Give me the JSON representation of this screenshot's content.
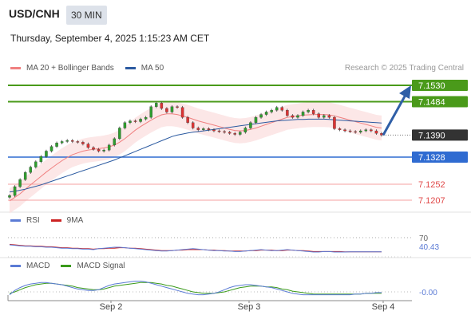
{
  "header": {
    "pair": "USD/CNH",
    "timeframe": "30 MIN",
    "datetime": "Thursday, September 4, 2025 1:15:23 AM CET",
    "credit": "Research © 2025 Trading Central"
  },
  "legend": {
    "price": [
      {
        "label": "MA 20 + Bollinger Bands",
        "color": "#f08080"
      },
      {
        "label": "MA 50",
        "color": "#2b5aa0"
      }
    ],
    "rsi": [
      {
        "label": "RSI",
        "color": "#5b7bd5"
      },
      {
        "label": "9MA",
        "color": "#cc2222"
      }
    ],
    "macd": [
      {
        "label": "MACD",
        "color": "#5b7bd5"
      },
      {
        "label": "MACD Signal",
        "color": "#3a9a1a"
      }
    ]
  },
  "levels": [
    {
      "value": 7.153,
      "label": "7.1530",
      "kind": "resistance",
      "color": "#4a9a1a"
    },
    {
      "value": 7.1484,
      "label": "7.1484",
      "kind": "resistance",
      "color": "#4a9a1a"
    },
    {
      "value": 7.139,
      "label": "7.1390",
      "kind": "current",
      "color": "#333333"
    },
    {
      "value": 7.1328,
      "label": "7.1328",
      "kind": "pivot",
      "color": "#2f6bd1"
    },
    {
      "value": 7.1252,
      "label": "7.1252",
      "kind": "support",
      "color": "#e04848"
    },
    {
      "value": 7.1207,
      "label": "7.1207",
      "kind": "support",
      "color": "#e04848"
    }
  ],
  "rsi_panel": {
    "level_label": "70",
    "value_label": "40.43"
  },
  "macd_panel": {
    "value_label": "-0.00"
  },
  "chart_data": {
    "type": "candlestick",
    "title": "USD/CNH",
    "timeframe": "30 MIN",
    "xticks": [
      "Sep 2",
      "Sep 3",
      "Sep 4"
    ],
    "close_series": [
      7.122,
      7.1245,
      7.1265,
      7.1285,
      7.13,
      7.1315,
      7.133,
      7.1345,
      7.1358,
      7.1368,
      7.1372,
      7.1375,
      7.1372,
      7.137,
      7.1365,
      7.1355,
      7.135,
      7.1345,
      7.1348,
      7.1362,
      7.138,
      7.141,
      7.1425,
      7.143,
      7.1428,
      7.1435,
      7.144,
      7.147,
      7.148,
      7.1465,
      7.1455,
      7.147,
      7.1468,
      7.144,
      7.1425,
      7.141,
      7.1405,
      7.1408,
      7.1405,
      7.1402,
      7.14,
      7.1398,
      7.1395,
      7.1392,
      7.1398,
      7.141,
      7.1425,
      7.144,
      7.1448,
      7.1455,
      7.146,
      7.1468,
      7.146,
      7.1445,
      7.144,
      7.1445,
      7.1455,
      7.146,
      7.145,
      7.144,
      7.1445,
      7.144,
      7.1408,
      7.1405,
      7.1402,
      7.14,
      7.1398,
      7.1402,
      7.1405,
      7.1402,
      7.1395,
      7.139
    ],
    "ma20": [
      7.1205,
      7.1215,
      7.1225,
      7.1238,
      7.125,
      7.1262,
      7.1274,
      7.1286,
      7.1297,
      7.1308,
      7.1318,
      7.1327,
      7.1335,
      7.134,
      7.1345,
      7.1348,
      7.135,
      7.1352,
      7.1354,
      7.1357,
      7.1362,
      7.137,
      7.138,
      7.1392,
      7.1404,
      7.1414,
      7.1423,
      7.1432,
      7.144,
      7.1447,
      7.145,
      7.145,
      7.1448,
      7.1444,
      7.144,
      7.1435,
      7.143,
      7.1426,
      7.1422,
      7.1418,
      7.1414,
      7.141,
      7.1406,
      7.1403,
      7.1402,
      7.1403,
      7.1406,
      7.141,
      7.1415,
      7.142,
      7.1425,
      7.143,
      7.1435,
      7.144,
      7.1442,
      7.1444,
      7.1446,
      7.1447,
      7.1448,
      7.1448,
      7.1448,
      7.1447,
      7.1444,
      7.144,
      7.1436,
      7.1432,
      7.1428,
      7.1424,
      7.142,
      7.1416,
      7.1412,
      7.141
    ],
    "ma50": [
      7.123,
      7.1232,
      7.1235,
      7.1238,
      7.1242,
      7.1246,
      7.125,
      7.1255,
      7.126,
      7.1265,
      7.127,
      7.1275,
      7.128,
      7.1285,
      7.129,
      7.1295,
      7.13,
      7.1305,
      7.131,
      7.1315,
      7.132,
      7.1326,
      7.1332,
      7.1338,
      7.1344,
      7.135,
      7.1356,
      7.1362,
      7.1368,
      7.1374,
      7.138,
      7.1386,
      7.139,
      7.1393,
      7.1396,
      7.1398,
      7.14,
      7.1402,
      7.1404,
      7.1406,
      7.1408,
      7.141,
      7.1412,
      7.1414,
      7.1416,
      7.1418,
      7.142,
      7.1422,
      7.1424,
      7.1426,
      7.1428,
      7.143,
      7.1431,
      7.1432,
      7.1433,
      7.1434,
      7.1434,
      7.1435,
      7.1435,
      7.1435,
      7.1435,
      7.1434,
      7.1433,
      7.1432,
      7.1431,
      7.143,
      7.1429,
      7.1428,
      7.1427,
      7.1426,
      7.1425,
      7.1424
    ],
    "band_width": 0.0035,
    "forecast_target": 7.153,
    "rsi": [
      55,
      54,
      53,
      52,
      52,
      51,
      51,
      50,
      50,
      49,
      48,
      48,
      47,
      47,
      46,
      46,
      45,
      47,
      48,
      49,
      50,
      50,
      49,
      48,
      47,
      46,
      45,
      44,
      43,
      42,
      42,
      43,
      44,
      45,
      46,
      47,
      46,
      45,
      44,
      43,
      43,
      42,
      42,
      41,
      41,
      42,
      43,
      44,
      45,
      44,
      43,
      43,
      44,
      45,
      44,
      43,
      42,
      41,
      40,
      40,
      41,
      41,
      40,
      40,
      40,
      40.5,
      40.5,
      40.5,
      40.4,
      40.4,
      40.4,
      40.43
    ],
    "rsi_ma": [
      56,
      55,
      54,
      53,
      53,
      52,
      52,
      51,
      51,
      50,
      49,
      49,
      48,
      48,
      47,
      47,
      46,
      47,
      47,
      48,
      48,
      49,
      49,
      48,
      48,
      47,
      46,
      45,
      44,
      43,
      43,
      43,
      44,
      44,
      45,
      45,
      45,
      45,
      44,
      44,
      43,
      43,
      42,
      42,
      42,
      42,
      43,
      43,
      44,
      44,
      44,
      43,
      43,
      44,
      44,
      43,
      43,
      42,
      41,
      41,
      41,
      41,
      41,
      41,
      40.5,
      40.5,
      40.5,
      40.5,
      40.5,
      40.5,
      40.5,
      40.5
    ],
    "rsi_level": 70,
    "macd": [
      -0.0004,
      0.0002,
      0.0006,
      0.0009,
      0.0011,
      0.0012,
      0.0013,
      0.0013,
      0.0012,
      0.0011,
      0.001,
      0.0008,
      0.0006,
      0.0004,
      0.0003,
      0.0002,
      0.0002,
      0.0003,
      0.0006,
      0.0009,
      0.0011,
      0.0012,
      0.0013,
      0.0014,
      0.0015,
      0.0015,
      0.0014,
      0.0012,
      0.001,
      0.0008,
      0.0006,
      0.0004,
      0.0002,
      0.0,
      -0.0002,
      -0.0003,
      -0.0004,
      -0.0004,
      -0.0003,
      -0.0002,
      0.0,
      0.0003,
      0.0006,
      0.0008,
      0.0009,
      0.001,
      0.001,
      0.0009,
      0.0008,
      0.0007,
      0.0006,
      0.0004,
      0.0002,
      0.0,
      -0.0002,
      -0.0003,
      -0.0004,
      -0.0004,
      -0.0004,
      -0.0004,
      -0.0004,
      -0.0004,
      -0.0004,
      -0.0004,
      -0.0004,
      -0.0004,
      -0.0003,
      -0.0003,
      -0.0002,
      -0.0002,
      -0.0001,
      -0.0001
    ],
    "macd_signal": [
      -0.0002,
      0.0,
      0.0003,
      0.0006,
      0.0008,
      0.001,
      0.0011,
      0.0012,
      0.0012,
      0.0011,
      0.001,
      0.0009,
      0.0008,
      0.0006,
      0.0005,
      0.0004,
      0.0003,
      0.0003,
      0.0004,
      0.0006,
      0.0008,
      0.0009,
      0.001,
      0.0011,
      0.0012,
      0.0013,
      0.0013,
      0.0013,
      0.0012,
      0.0011,
      0.0009,
      0.0008,
      0.0006,
      0.0004,
      0.0002,
      0.0,
      -0.0001,
      -0.0002,
      -0.0002,
      -0.0002,
      -0.0001,
      0.0,
      0.0002,
      0.0004,
      0.0006,
      0.0007,
      0.0008,
      0.0008,
      0.0008,
      0.0007,
      0.0007,
      0.0006,
      0.0004,
      0.0003,
      0.0001,
      0.0,
      -0.0001,
      -0.0002,
      -0.0003,
      -0.0003,
      -0.0003,
      -0.0003,
      -0.0003,
      -0.0003,
      -0.0003,
      -0.0003,
      -0.0003,
      -0.0003,
      -0.0002,
      -0.0002,
      -0.0002,
      -0.0002
    ]
  }
}
